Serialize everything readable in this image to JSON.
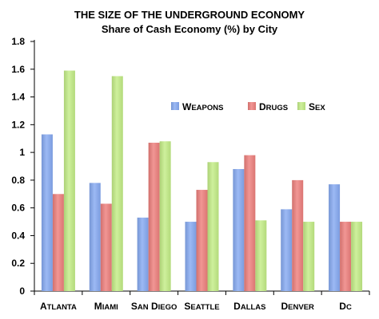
{
  "chart_data": {
    "type": "bar",
    "title": "THE SIZE OF THE UNDERGROUND ECONOMY",
    "subtitle": "Share of Cash Economy (%) by City",
    "xlabel": "",
    "ylabel": "",
    "ylim": [
      0,
      1.8
    ],
    "yticks": [
      "0",
      "0.2",
      "0.4",
      "0.6",
      "0.8",
      "1",
      "1.2",
      "1.4",
      "1.6",
      "1.8"
    ],
    "grid": false,
    "legend_position": "center-right",
    "categories": [
      "Atlanta",
      "Miami",
      "San Diego",
      "Seattle",
      "Dallas",
      "Denver",
      "DC"
    ],
    "series": [
      {
        "name": "Weapons",
        "color": "#86aaf2",
        "values": [
          1.13,
          0.78,
          0.53,
          0.5,
          0.88,
          0.59,
          0.77
        ]
      },
      {
        "name": "Drugs",
        "color": "#ee7f7c",
        "values": [
          0.7,
          0.63,
          1.07,
          0.73,
          0.98,
          0.8,
          0.5
        ]
      },
      {
        "name": "Sex",
        "color": "#c3ed86",
        "values": [
          1.59,
          1.55,
          1.08,
          0.93,
          0.51,
          0.5,
          0.5
        ]
      }
    ]
  }
}
